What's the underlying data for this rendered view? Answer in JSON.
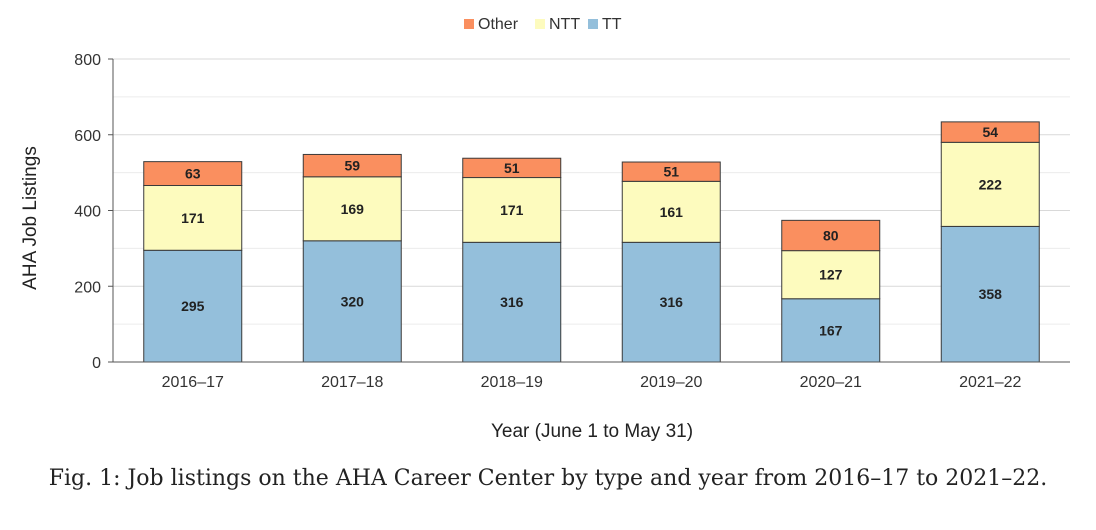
{
  "chart_data": {
    "type": "bar",
    "stacked": true,
    "categories": [
      "2016–17",
      "2017–18",
      "2018–19",
      "2019–20",
      "2020–21",
      "2021–22"
    ],
    "series": [
      {
        "name": "TT",
        "color": "#94bfdb",
        "values": [
          295,
          320,
          316,
          316,
          167,
          358
        ]
      },
      {
        "name": "NTT",
        "color": "#fdfbbe",
        "values": [
          171,
          169,
          171,
          161,
          127,
          222
        ]
      },
      {
        "name": "Other",
        "color": "#fa8f5f",
        "values": [
          63,
          59,
          51,
          51,
          80,
          54
        ]
      }
    ],
    "legend_order": [
      "Other",
      "NTT",
      "TT"
    ],
    "legend_position": "top-center",
    "xlabel": "Year (June 1 to May 31)",
    "ylabel": "AHA Job Listings",
    "ylim": [
      0,
      800
    ],
    "yticks": [
      0,
      200,
      400,
      600,
      800
    ],
    "grid": true
  },
  "caption": "Fig. 1: Job listings on the AHA Career Center by type and year from 2016–17 to 2021–22."
}
